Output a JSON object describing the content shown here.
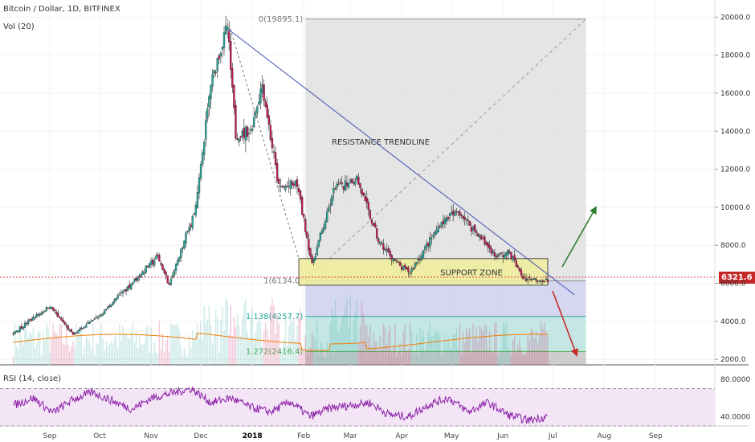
{
  "header": {
    "symbol_line": "Bitcoin / Dollar, 1D, BITFINEX",
    "volume_line": "Vol (20)",
    "rsi_line": "RSI (14, close)"
  },
  "colors": {
    "up": "#26a69a",
    "down": "#c2185b",
    "trendline": "#3f51b5",
    "support_fill": "#f0ee9a",
    "support_border": "#333333",
    "price_line": "#c62828",
    "rsi_line": "#8e24aa",
    "rsi_band": "#f3e5f5",
    "volume_ma": "#f57c00",
    "fib_gray": "#e0e0e0",
    "fib_blue": "#c5cae9",
    "fib_teal": "#b2dfdb",
    "fib_green": "#4caf50",
    "arrow_up": "#2e7d32",
    "arrow_down": "#c62828"
  },
  "chart_data": {
    "type": "candlestick",
    "title": "Bitcoin / Dollar, 1D, BITFINEX",
    "x_ticks": [
      "Sep",
      "Oct",
      "Nov",
      "Dec",
      "2018",
      "Feb",
      "Mar",
      "Apr",
      "May",
      "Jun",
      "Jul",
      "Aug",
      "Sep"
    ],
    "y_ticks": [
      "20000.0",
      "18000.0",
      "16000.0",
      "14000.0",
      "12000.0",
      "10000.0",
      "8000.0",
      "6000.0",
      "4000.0",
      "2000.0"
    ],
    "ylim": [
      1900,
      20900
    ],
    "price_path": [
      {
        "date": "2017-08-10",
        "price": 3400
      },
      {
        "date": "2017-09-01",
        "price": 4800
      },
      {
        "date": "2017-09-15",
        "price": 3300
      },
      {
        "date": "2017-10-01",
        "price": 4300
      },
      {
        "date": "2017-10-20",
        "price": 6000
      },
      {
        "date": "2017-11-05",
        "price": 7400
      },
      {
        "date": "2017-11-12",
        "price": 5900
      },
      {
        "date": "2017-11-28",
        "price": 10000
      },
      {
        "date": "2017-12-07",
        "price": 16500
      },
      {
        "date": "2017-12-17",
        "price": 19500
      },
      {
        "date": "2017-12-22",
        "price": 13800
      },
      {
        "date": "2017-12-31",
        "price": 14000
      },
      {
        "date": "2018-01-07",
        "price": 16500
      },
      {
        "date": "2018-01-17",
        "price": 11000
      },
      {
        "date": "2018-01-28",
        "price": 11200
      },
      {
        "date": "2018-02-06",
        "price": 7000
      },
      {
        "date": "2018-02-20",
        "price": 11100
      },
      {
        "date": "2018-03-05",
        "price": 11500
      },
      {
        "date": "2018-03-18",
        "price": 8200
      },
      {
        "date": "2018-04-01",
        "price": 6800
      },
      {
        "date": "2018-04-06",
        "price": 6600
      },
      {
        "date": "2018-04-25",
        "price": 9200
      },
      {
        "date": "2018-05-05",
        "price": 9800
      },
      {
        "date": "2018-05-28",
        "price": 7400
      },
      {
        "date": "2018-06-05",
        "price": 7600
      },
      {
        "date": "2018-06-13",
        "price": 6300
      },
      {
        "date": "2018-06-23",
        "price": 6200
      },
      {
        "date": "2018-06-28",
        "price": 6100
      }
    ],
    "current_price": "6321.6",
    "resistance_trendline": {
      "label": "RESISTANCE TRENDLINE",
      "from": {
        "date": "2017-12-17",
        "price": 19400
      },
      "to": {
        "date": "2018-07-01",
        "price": 6000
      }
    },
    "support_zone": {
      "label": "SUPPORT ZONE",
      "price_low": 5900,
      "price_high": 7300,
      "from": "2018-01-29",
      "to": "2018-06-28"
    },
    "fibonacci": [
      {
        "label": "0(19895.1)",
        "price": 19895.1
      },
      {
        "label": "1(6134.0)",
        "price": 6134.0
      },
      {
        "label": "1.138(4257.7)",
        "price": 4257.7
      },
      {
        "label": "1.272(2416.4)",
        "price": 2416.4
      }
    ],
    "rsi": {
      "ylim": [
        30,
        92
      ],
      "y_ticks": [
        "80.0000",
        "40.0000"
      ],
      "upper_band": 70,
      "lower_band": 30,
      "values": [
        52,
        60,
        44,
        58,
        66,
        57,
        48,
        60,
        65,
        70,
        55,
        60,
        50,
        45,
        56,
        40,
        49,
        52,
        55,
        42,
        40,
        53,
        60,
        45,
        55,
        42,
        36,
        40
      ]
    },
    "volume": {
      "note": "Vol (20)"
    }
  }
}
